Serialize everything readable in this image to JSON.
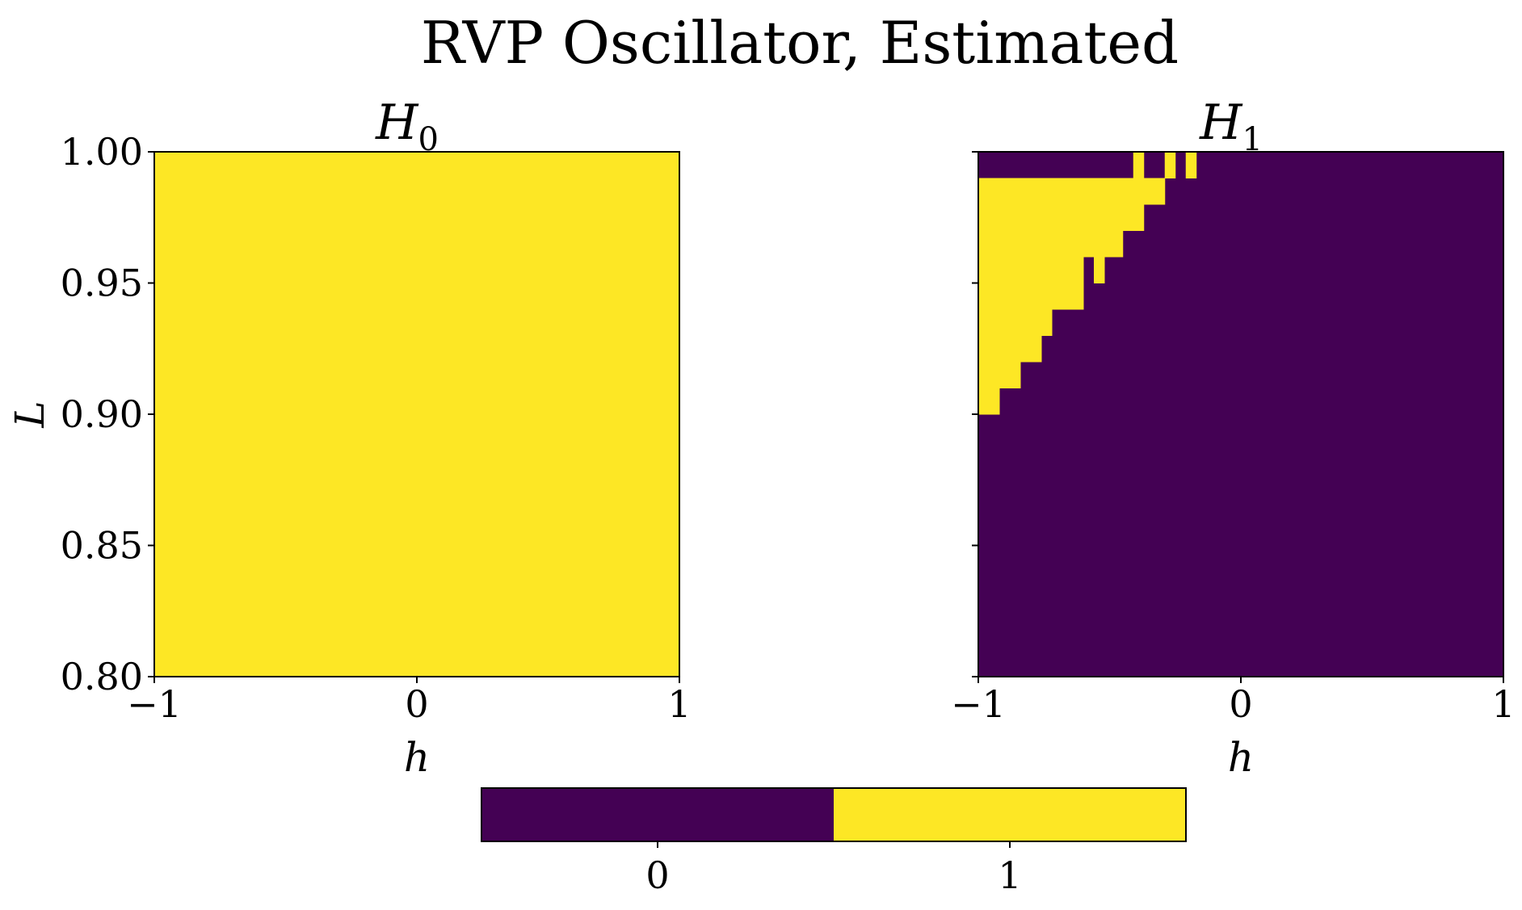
{
  "figure_title": "RVP Oscillator, Estimated",
  "colors": {
    "zero": "#440154",
    "one": "#fde725",
    "axis": "#000000"
  },
  "chart_data": [
    {
      "type": "heatmap",
      "title": "H",
      "title_subscript": "0",
      "xlabel": "h",
      "ylabel": "L",
      "xlim": [
        -1,
        1
      ],
      "ylim": [
        0.8,
        1.0
      ],
      "xticks": [
        -1,
        0,
        1
      ],
      "xtick_labels": [
        "−1",
        "0",
        "1"
      ],
      "yticks": [
        0.8,
        0.85,
        0.9,
        0.95,
        1.0
      ],
      "ytick_labels": [
        "0.80",
        "0.85",
        "0.90",
        "0.95",
        "1.00"
      ],
      "grid": {
        "nx": 40,
        "ny": 20
      },
      "default_value": 1,
      "regions": []
    },
    {
      "type": "heatmap",
      "title": "H",
      "title_subscript": "1",
      "xlabel": "h",
      "ylabel": "",
      "xlim": [
        -1,
        1
      ],
      "ylim": [
        0.8,
        1.0
      ],
      "xticks": [
        -1,
        0,
        1
      ],
      "xtick_labels": [
        "−1",
        "0",
        "1"
      ],
      "yticks": [
        0.8,
        0.85,
        0.9,
        0.95,
        1.0
      ],
      "ytick_labels": [],
      "grid": {
        "nx": 40,
        "ny": 20
      },
      "default_value": 0,
      "regions": [
        {
          "h": [
            -0.41,
            -0.37
          ],
          "L": [
            0.99,
            1.0
          ],
          "value": 1
        },
        {
          "h": [
            -0.29,
            -0.25
          ],
          "L": [
            0.99,
            1.0
          ],
          "value": 1
        },
        {
          "h": [
            -0.21,
            -0.17
          ],
          "L": [
            0.99,
            1.0
          ],
          "value": 1
        },
        {
          "h": [
            -1.0,
            -0.29
          ],
          "L": [
            0.98,
            0.99
          ],
          "value": 1
        },
        {
          "h": [
            -1.0,
            -0.37
          ],
          "L": [
            0.97,
            0.98
          ],
          "value": 1
        },
        {
          "h": [
            -1.0,
            -0.45
          ],
          "L": [
            0.96,
            0.97
          ],
          "value": 1
        },
        {
          "h": [
            -1.0,
            -0.6
          ],
          "L": [
            0.95,
            0.96
          ],
          "value": 1
        },
        {
          "h": [
            -0.56,
            -0.52
          ],
          "L": [
            0.95,
            0.96
          ],
          "value": 1
        },
        {
          "h": [
            -1.0,
            -0.6
          ],
          "L": [
            0.94,
            0.95
          ],
          "value": 1
        },
        {
          "h": [
            -1.0,
            -0.72
          ],
          "L": [
            0.93,
            0.94
          ],
          "value": 1
        },
        {
          "h": [
            -1.0,
            -0.76
          ],
          "L": [
            0.92,
            0.93
          ],
          "value": 1
        },
        {
          "h": [
            -1.0,
            -0.84
          ],
          "L": [
            0.91,
            0.92
          ],
          "value": 1
        },
        {
          "h": [
            -1.0,
            -0.92
          ],
          "L": [
            0.9,
            0.91
          ],
          "value": 1
        }
      ]
    }
  ],
  "colorbar": {
    "values": [
      0,
      1
    ],
    "tick_labels": [
      "0",
      "1"
    ],
    "orientation": "horizontal"
  }
}
